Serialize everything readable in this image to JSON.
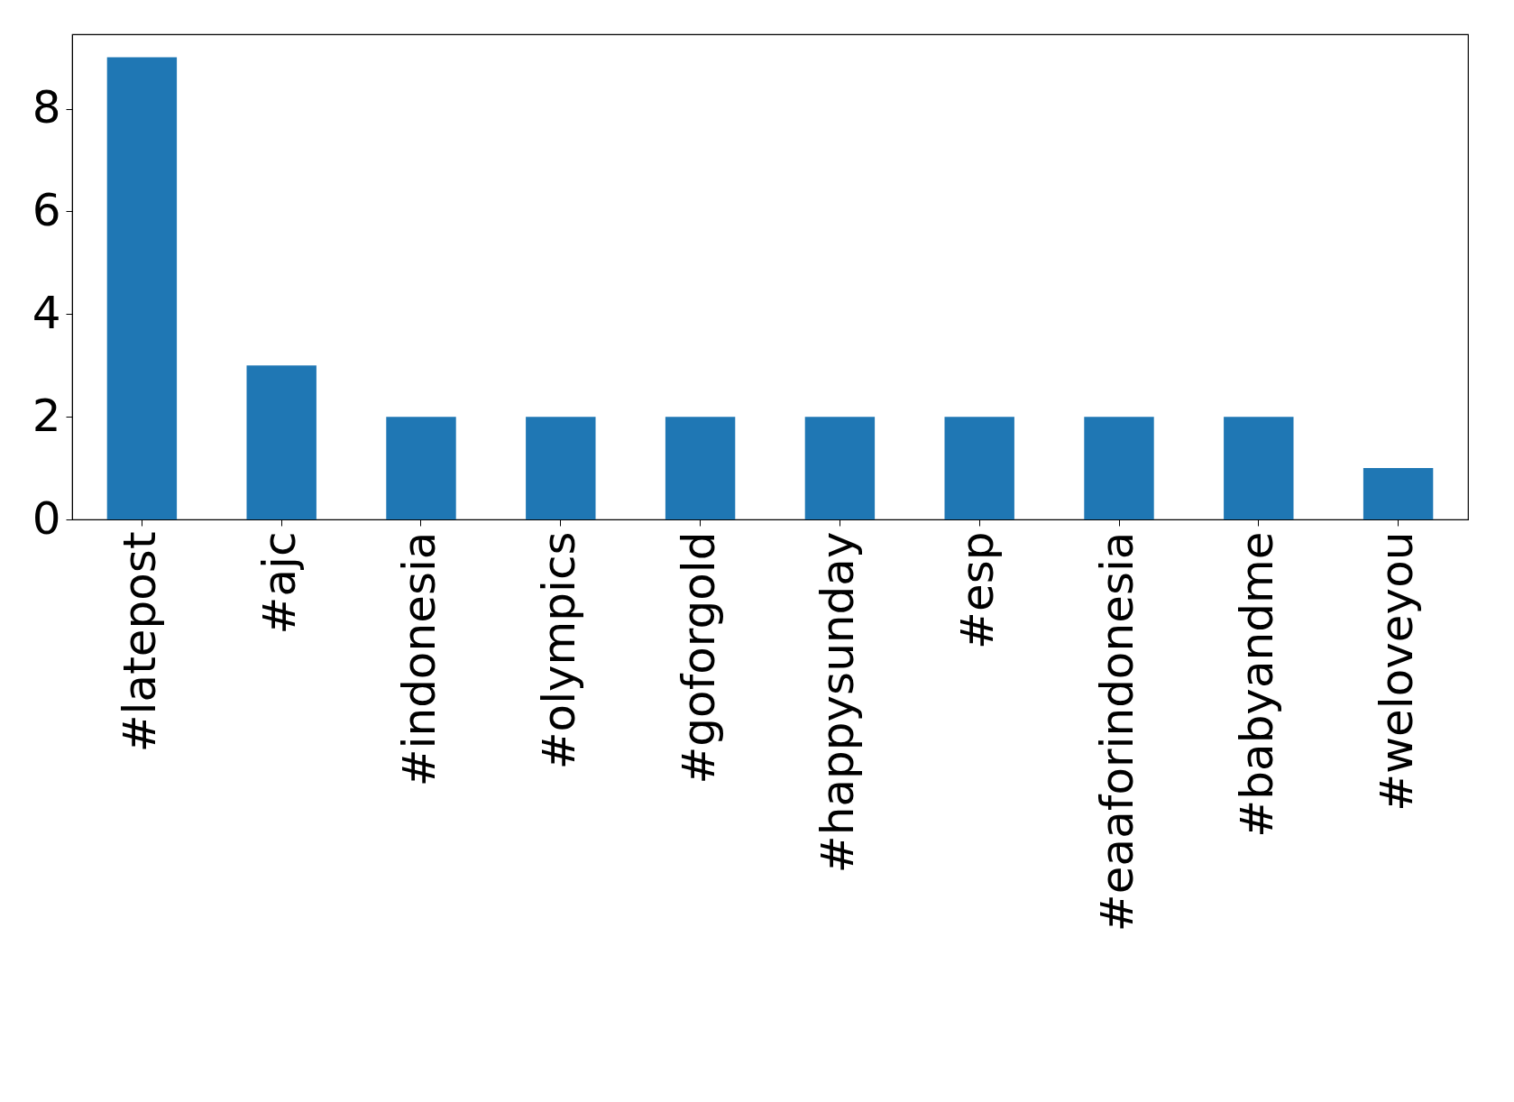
{
  "chart_data": {
    "type": "bar",
    "categories": [
      "#latepost",
      "#ajc",
      "#indonesia",
      "#olympics",
      "#goforgold",
      "#happysunday",
      "#esp",
      "#eaaforindonesia",
      "#babyandme",
      "#weloveyou"
    ],
    "values": [
      9,
      3,
      2,
      2,
      2,
      2,
      2,
      2,
      2,
      1
    ],
    "color": "#1f77b4",
    "ylim": [
      0,
      9.45
    ],
    "yticks": [
      0,
      2,
      4,
      6,
      8
    ],
    "grid": false
  }
}
